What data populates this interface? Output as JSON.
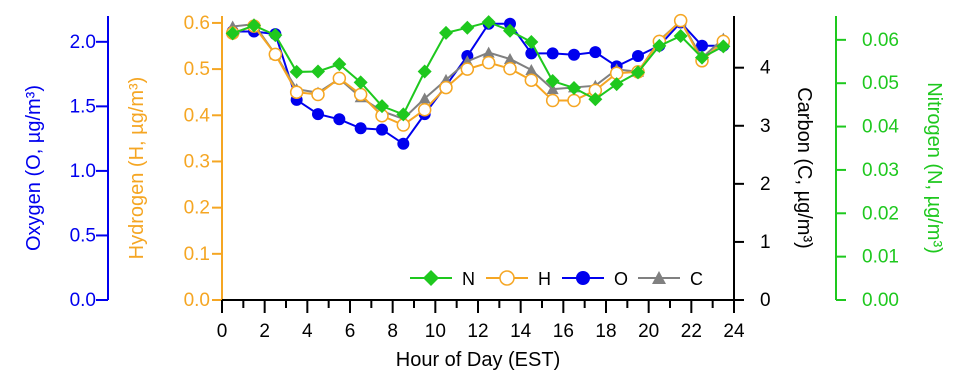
{
  "chart_data": {
    "type": "line",
    "x": [
      0.5,
      1.5,
      2.5,
      3.5,
      4.5,
      5.5,
      6.5,
      7.5,
      8.5,
      9.5,
      10.5,
      11.5,
      12.5,
      13.5,
      14.5,
      15.5,
      16.5,
      17.5,
      18.5,
      19.5,
      20.5,
      21.5,
      22.5,
      23.5
    ],
    "xlabel": "Hour of Day (EST)",
    "xlim": [
      0,
      24
    ],
    "xticks": [
      "0",
      "2",
      "4",
      "6",
      "8",
      "10",
      "12",
      "14",
      "16",
      "18",
      "20",
      "22",
      "24"
    ],
    "axes": {
      "oxygen": {
        "label": "Oxygen (O, µg/m³)",
        "ylim": [
          0,
          2.2
        ],
        "ticks": [
          "0.0",
          "0.5",
          "1.0",
          "1.5",
          "2.0"
        ],
        "color": "#0000ee"
      },
      "hydrogen": {
        "label": "Hydrogen (H, µg/m³)",
        "ylim": [
          0,
          0.615
        ],
        "ticks": [
          "0.0",
          "0.1",
          "0.2",
          "0.3",
          "0.4",
          "0.5",
          "0.6"
        ],
        "color": "#f5a623"
      },
      "carbon": {
        "label": "Carbon (C, µg/m³)",
        "ylim": [
          0,
          4.89
        ],
        "ticks": [
          "0",
          "1",
          "2",
          "3",
          "4"
        ],
        "color": "#000000"
      },
      "nitrogen": {
        "label": "Nitrogen (N, µg/m³)",
        "ylim": [
          0,
          0.0655
        ],
        "ticks": [
          "0.00",
          "0.01",
          "0.02",
          "0.03",
          "0.04",
          "0.05",
          "0.06"
        ],
        "color": "#1ec81e"
      }
    },
    "series": [
      {
        "name": "N",
        "axis": "nitrogen",
        "color": "#1ec81e",
        "marker": "diamond",
        "values": [
          0.0615,
          0.0633,
          0.0611,
          0.0526,
          0.0527,
          0.0544,
          0.0502,
          0.0447,
          0.0428,
          0.0527,
          0.0616,
          0.0628,
          0.0641,
          0.0621,
          0.0595,
          0.0505,
          0.0489,
          0.0463,
          0.0498,
          0.0525,
          0.0586,
          0.0609,
          0.0559,
          0.0585
        ]
      },
      {
        "name": "H",
        "axis": "hydrogen",
        "color": "#f5a623",
        "marker": "circle-open",
        "values": [
          0.578,
          0.593,
          0.532,
          0.45,
          0.445,
          0.48,
          0.445,
          0.399,
          0.379,
          0.412,
          0.46,
          0.5,
          0.514,
          0.501,
          0.476,
          0.432,
          0.432,
          0.454,
          0.491,
          0.494,
          0.56,
          0.605,
          0.518,
          0.56
        ]
      },
      {
        "name": "O",
        "axis": "oxygen",
        "color": "#0000ee",
        "marker": "circle",
        "values": [
          2.08,
          2.08,
          2.06,
          1.55,
          1.44,
          1.4,
          1.33,
          1.32,
          1.21,
          1.44,
          1.66,
          1.89,
          2.14,
          2.14,
          1.91,
          1.91,
          1.9,
          1.92,
          1.81,
          1.89,
          1.97,
          2.15,
          1.97,
          1.97
        ]
      },
      {
        "name": "C",
        "axis": "carbon",
        "color": "#808080",
        "marker": "triangle",
        "values": [
          4.71,
          4.75,
          4.23,
          3.63,
          3.57,
          3.81,
          3.49,
          3.25,
          3.12,
          3.47,
          3.79,
          4.11,
          4.26,
          4.15,
          3.96,
          3.63,
          3.66,
          3.69,
          3.97,
          3.93,
          4.47,
          4.8,
          4.17,
          4.5
        ]
      }
    ],
    "legend_position": "bottom-right",
    "grid": false
  }
}
